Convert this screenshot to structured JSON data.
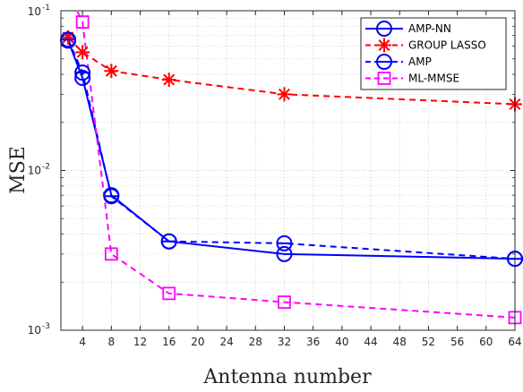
{
  "chart_data": {
    "type": "line",
    "title": "",
    "xlabel": "Antenna number",
    "ylabel": "MSE",
    "xlim": [
      1,
      64
    ],
    "ylim": [
      0.001,
      0.1
    ],
    "yscale": "log",
    "grid": true,
    "legend_position": "top-right",
    "x_ticks": [
      4,
      8,
      12,
      16,
      20,
      24,
      28,
      32,
      36,
      40,
      44,
      48,
      52,
      56,
      60,
      64
    ],
    "x_tick_labels": [
      "4",
      "8",
      "12",
      "16",
      "20",
      "24",
      "28",
      "32",
      "36",
      "40",
      "44",
      "48",
      "52",
      "56",
      "60",
      "64"
    ],
    "y_ticks": [
      0.001,
      0.01,
      0.1
    ],
    "y_tick_labels": [
      {
        "base": "10",
        "exp": "-3"
      },
      {
        "base": "10",
        "exp": "-2"
      },
      {
        "base": "10",
        "exp": "-1"
      }
    ],
    "series": [
      {
        "name": "AMP-NN",
        "color": "#0000ff",
        "dash": "solid",
        "marker": "circle",
        "x": [
          2,
          4,
          8,
          16,
          32,
          64
        ],
        "y": [
          0.065,
          0.038,
          0.007,
          0.0036,
          0.003,
          0.0028
        ]
      },
      {
        "name": "GROUP LASSO",
        "color": "#ff0000",
        "dash": "dashed",
        "marker": "star",
        "x": [
          2,
          4,
          8,
          16,
          32,
          64
        ],
        "y": [
          0.068,
          0.055,
          0.042,
          0.037,
          0.03,
          0.026
        ]
      },
      {
        "name": "AMP",
        "color": "#0000ff",
        "dash": "dashed",
        "marker": "circle-dash",
        "x": [
          2,
          4,
          8,
          16,
          32,
          64
        ],
        "y": [
          0.066,
          0.041,
          0.0069,
          0.0036,
          0.0035,
          0.0028
        ]
      },
      {
        "name": "ML-MMSE",
        "color": "#ff00ff",
        "dash": "dashed",
        "marker": "square",
        "x": [
          2,
          4,
          8,
          16,
          32,
          64
        ],
        "y": [
          0.13,
          0.085,
          0.003,
          0.0017,
          0.0015,
          0.0012
        ]
      }
    ]
  }
}
